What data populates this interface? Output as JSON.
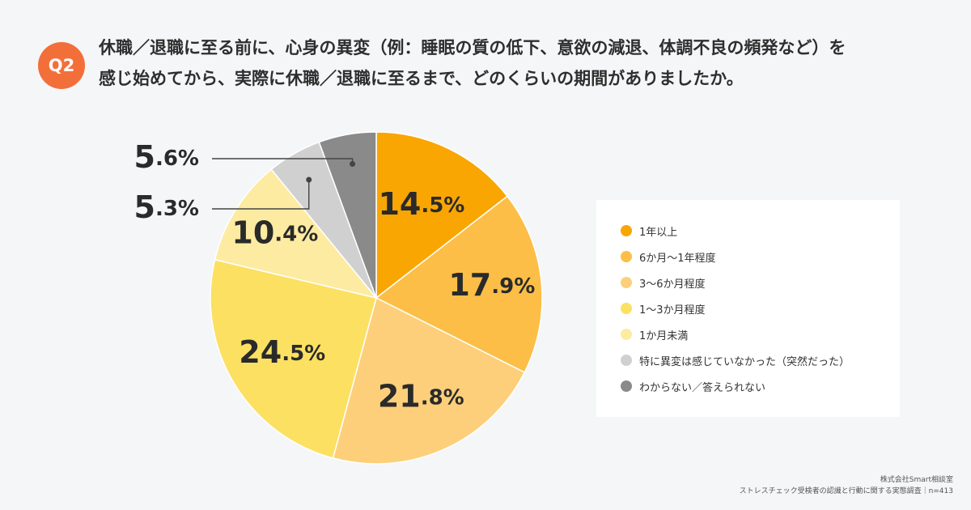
{
  "header": {
    "badge": "Q2",
    "question_line1": "休職／退職に至る前に、心身の異変（例：睡眠の質の低下、意欲の減退、体調不良の頻発など）を",
    "question_line2": "感じ始めてから、実際に休職／退職に至るまで、どのくらいの期間がありましたか。"
  },
  "chart_data": {
    "type": "pie",
    "categories": [
      "1年以上",
      "6か月〜1年程度",
      "3〜6か月程度",
      "1〜3か月程度",
      "1か月未満",
      "特に異変は感じていなかった（突然だった）",
      "わからない／答えられない"
    ],
    "values": [
      14.5,
      17.9,
      21.8,
      24.5,
      10.4,
      5.3,
      5.6
    ],
    "value_labels": [
      "14.5%",
      "17.9%",
      "21.8%",
      "24.5%",
      "10.4%",
      "5.3%",
      "5.6%"
    ],
    "colors": [
      "#f9a602",
      "#fcbe46",
      "#fdcf7a",
      "#fce062",
      "#fdeba2",
      "#d0d0d0",
      "#8a8a8a"
    ],
    "start": "top",
    "direction": "clockwise",
    "legend_position": "right"
  },
  "footer": {
    "line1": "株式会社Smart相談室",
    "line2": "ストレスチェック受検者の認識と行動に関する実態調査｜n=413"
  }
}
